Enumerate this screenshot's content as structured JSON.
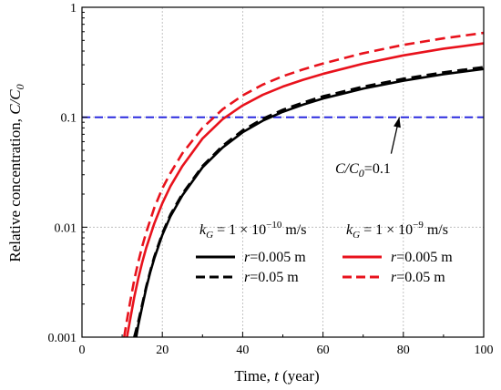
{
  "chart_data": {
    "type": "line",
    "xlabel": {
      "pre": "Time, ",
      "var": "t",
      "post": " (year)"
    },
    "ylabel": {
      "pre": "Relative concentration, ",
      "var": "C/C",
      "sub": "0"
    },
    "xlim": [
      0,
      100
    ],
    "ylim": [
      0.001,
      1
    ],
    "yscale": "log",
    "grid": true,
    "x_ticks": [
      0,
      20,
      40,
      60,
      80,
      100
    ],
    "x_tick_labels": [
      "0",
      "20",
      "40",
      "60",
      "80",
      "100"
    ],
    "y_ticks": [
      0.001,
      0.01,
      0.1,
      1
    ],
    "y_tick_labels": [
      "0.001",
      "0.01",
      "0.1",
      "1"
    ],
    "legend": {
      "groups": [
        {
          "header": {
            "var": "k",
            "sub": "G",
            "eq": " = 1 × 10",
            "exp": "−10",
            "unit": " m/s"
          },
          "entries": [
            {
              "label": "=0.005 m",
              "var": "r",
              "series": 0
            },
            {
              "label": "=0.05 m",
              "var": "r",
              "series": 1
            }
          ]
        },
        {
          "header": {
            "var": "k",
            "sub": "G",
            "eq": " = 1 × 10",
            "exp": "−9",
            "unit": " m/s"
          },
          "entries": [
            {
              "label": "=0.005 m",
              "var": "r",
              "series": 2
            },
            {
              "label": "=0.05 m",
              "var": "r",
              "series": 3
            }
          ]
        }
      ]
    },
    "annotation": {
      "var": "C/C",
      "sub": "0",
      "text": "=0.1",
      "arrow_to": [
        79,
        0.1
      ]
    },
    "threshold": {
      "y": 0.1,
      "color": "#1f1fdd",
      "style": "dashed"
    },
    "series": [
      {
        "color": "#000000",
        "style": "solid",
        "x": [
          13.5,
          14,
          15,
          16,
          17,
          18,
          20,
          22,
          25,
          30,
          35,
          40,
          45,
          50,
          55,
          60,
          70,
          80,
          90,
          100
        ],
        "y": [
          0.001,
          0.00128,
          0.0019,
          0.0028,
          0.0039,
          0.0052,
          0.0085,
          0.0125,
          0.0195,
          0.035,
          0.053,
          0.073,
          0.093,
          0.112,
          0.13,
          0.148,
          0.182,
          0.215,
          0.246,
          0.275
        ]
      },
      {
        "color": "#000000",
        "style": "dashed",
        "x": [
          13,
          14,
          15,
          16,
          17,
          18,
          20,
          22,
          25,
          30,
          35,
          40,
          45,
          50,
          55,
          60,
          70,
          80,
          90,
          100
        ],
        "y": [
          0.001,
          0.00138,
          0.002,
          0.0029,
          0.004,
          0.0054,
          0.0088,
          0.013,
          0.0202,
          0.036,
          0.055,
          0.076,
          0.097,
          0.117,
          0.136,
          0.155,
          0.19,
          0.224,
          0.256,
          0.286
        ]
      },
      {
        "color": "#e8121c",
        "style": "solid",
        "x": [
          11.2,
          12,
          13,
          14,
          15,
          16,
          18,
          20,
          22,
          25,
          30,
          35,
          40,
          45,
          50,
          55,
          60,
          70,
          80,
          90,
          100
        ],
        "y": [
          0.001,
          0.00145,
          0.0023,
          0.0034,
          0.0048,
          0.0065,
          0.0108,
          0.0165,
          0.0235,
          0.036,
          0.064,
          0.096,
          0.128,
          0.16,
          0.19,
          0.219,
          0.248,
          0.307,
          0.365,
          0.42,
          0.47
        ]
      },
      {
        "color": "#e8121c",
        "style": "dashed",
        "x": [
          10.5,
          11,
          12,
          13,
          14,
          15,
          16,
          18,
          20,
          22,
          25,
          30,
          35,
          40,
          45,
          50,
          55,
          60,
          70,
          80,
          90,
          100
        ],
        "y": [
          0.001,
          0.0013,
          0.0021,
          0.0033,
          0.0048,
          0.0067,
          0.009,
          0.015,
          0.0225,
          0.031,
          0.047,
          0.08,
          0.118,
          0.158,
          0.198,
          0.236,
          0.272,
          0.308,
          0.382,
          0.455,
          0.522,
          0.585
        ]
      }
    ]
  }
}
